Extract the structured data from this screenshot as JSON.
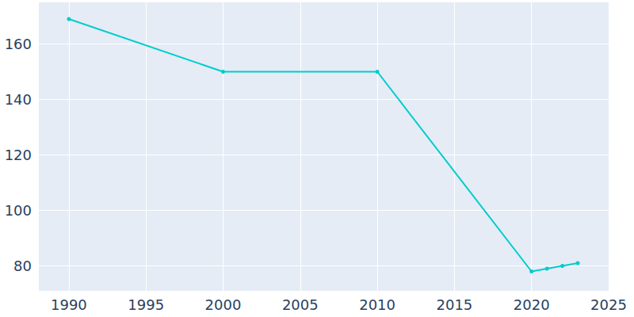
{
  "chart_data": {
    "type": "line",
    "x": [
      1990,
      2000,
      2010,
      2020,
      2021,
      2022,
      2023
    ],
    "values": [
      169,
      150,
      150,
      78,
      79,
      80,
      81
    ],
    "color": "#00cccc",
    "marker": "circle",
    "xlim": [
      1988,
      2025
    ],
    "xticks": [
      1990,
      1995,
      2000,
      2005,
      2010,
      2015,
      2020,
      2025
    ],
    "ylim": [
      71,
      175
    ],
    "yticks": [
      80,
      100,
      120,
      140,
      160
    ],
    "grid": true
  }
}
